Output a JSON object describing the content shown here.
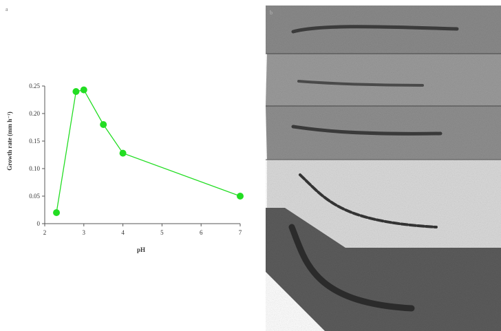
{
  "figure": {
    "panel_a_label": "a",
    "panel_b_label": "b"
  },
  "colors": {
    "series": "#22dd22",
    "axis": "#555555"
  },
  "chart_data": {
    "type": "line",
    "title": "",
    "xlabel": "pH",
    "ylabel": "Growth rate (mm h⁻¹)",
    "xlim": [
      2,
      7
    ],
    "ylim": [
      0,
      0.25
    ],
    "xticks": [
      2,
      3,
      4,
      5,
      6,
      7
    ],
    "yticks": [
      0,
      0.05,
      0.1,
      0.15,
      0.2,
      0.25
    ],
    "ytick_labels": [
      "0",
      "0.05",
      "0.10",
      "0.15",
      "0.20",
      "0.25"
    ],
    "grid": false,
    "series": [
      {
        "x": [
          2.3,
          2.8,
          3.0,
          3.5,
          4.0,
          7.0
        ],
        "y": [
          0.02,
          0.24,
          0.243,
          0.18,
          0.128,
          0.05
        ]
      }
    ]
  }
}
